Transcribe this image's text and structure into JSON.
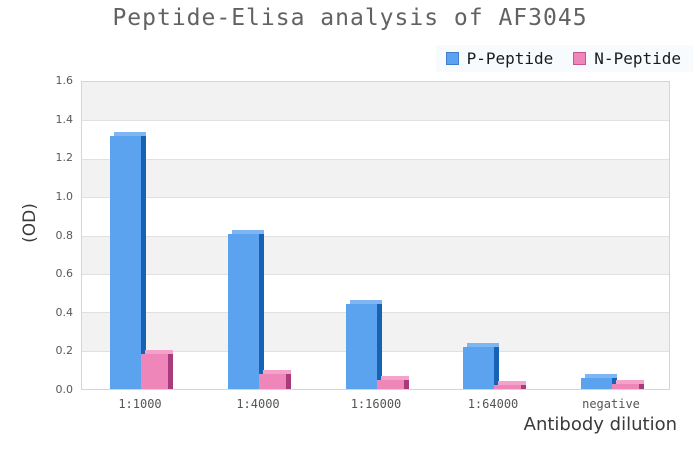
{
  "chart_data": {
    "type": "bar",
    "title": "Peptide-Elisa analysis of AF3045",
    "xlabel": "Antibody dilution",
    "ylabel": "(OD)",
    "categories": [
      "1:1000",
      "1:4000",
      "1:16000",
      "1:64000",
      "negative"
    ],
    "series": [
      {
        "name": "P-Peptide",
        "values": [
          1.31,
          0.8,
          0.44,
          0.22,
          0.055
        ],
        "color": "#5ba3ef",
        "side_color": "#1662b5",
        "top_color": "#7eb6f3",
        "legend_border": "#3d7fc9"
      },
      {
        "name": "N-Peptide",
        "values": [
          0.18,
          0.08,
          0.045,
          0.02,
          0.025
        ],
        "color": "#ee86b9",
        "side_color": "#a93a7c",
        "top_color": "#f3a2ca",
        "legend_border": "#c9558f"
      }
    ],
    "ylim": [
      0,
      1.6
    ],
    "ytick_step": 0.2,
    "grid": true,
    "legend_position": "top-right"
  }
}
